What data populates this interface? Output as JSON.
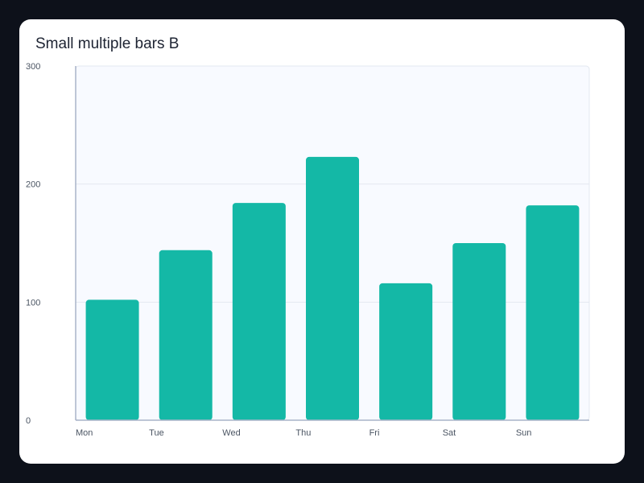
{
  "chart_data": {
    "type": "bar",
    "title": "Small multiple bars B",
    "categories": [
      "Mon",
      "Tue",
      "Wed",
      "Thu",
      "Fri",
      "Sat",
      "Sun"
    ],
    "values": [
      102,
      144,
      184,
      223,
      116,
      150,
      182
    ],
    "ylim": [
      0,
      300
    ],
    "yticks": [
      0,
      100,
      200,
      300
    ],
    "xlabel": "",
    "ylabel": "",
    "grid": true,
    "legend": "none",
    "colors": {
      "bar": "#14b8a6",
      "plot_background": "#f8faff",
      "gridline": "#e3e8f0",
      "axis": "#a9b4c8",
      "card": "#ffffff",
      "page_background": "#0d111a"
    }
  }
}
